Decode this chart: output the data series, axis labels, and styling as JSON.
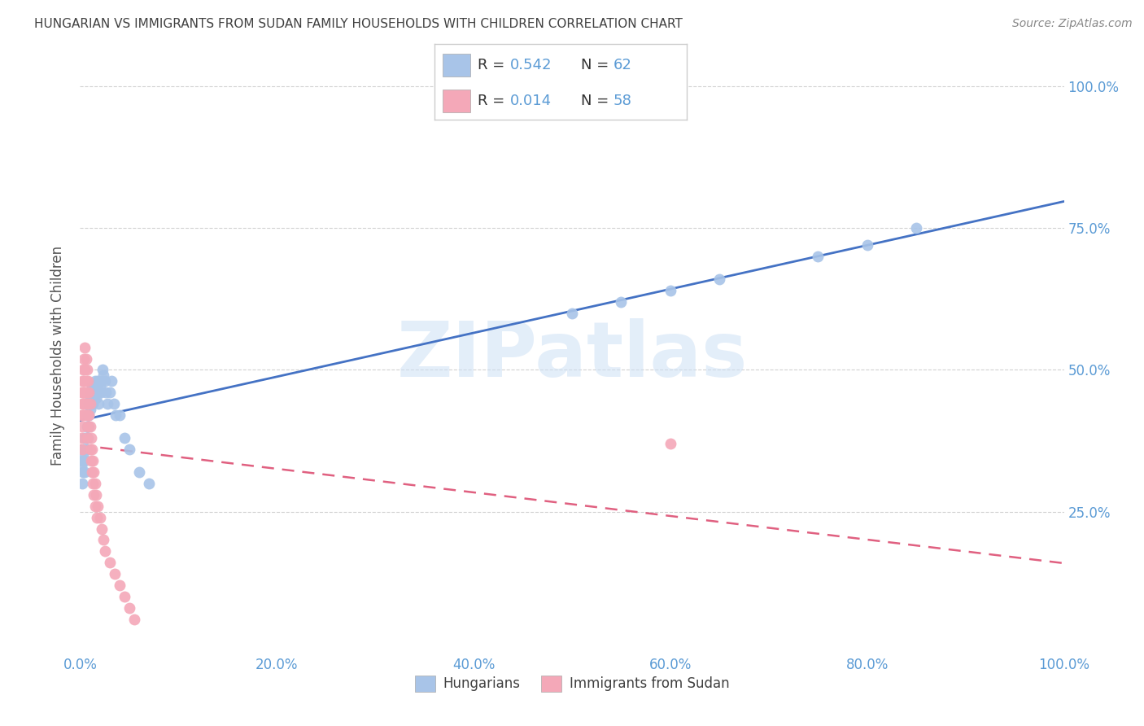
{
  "title": "HUNGARIAN VS IMMIGRANTS FROM SUDAN FAMILY HOUSEHOLDS WITH CHILDREN CORRELATION CHART",
  "source": "Source: ZipAtlas.com",
  "ylabel": "Family Households with Children",
  "blue_r": 0.542,
  "blue_n": 62,
  "pink_r": 0.014,
  "pink_n": 58,
  "blue_color": "#a8c4e8",
  "pink_color": "#f4a8b8",
  "blue_line_color": "#4472c4",
  "pink_line_color": "#e06080",
  "title_color": "#404040",
  "axis_color": "#5b9bd5",
  "watermark": "ZIPatlas",
  "blue_x": [
    0.001,
    0.002,
    0.002,
    0.003,
    0.003,
    0.004,
    0.004,
    0.005,
    0.005,
    0.005,
    0.006,
    0.006,
    0.007,
    0.007,
    0.008,
    0.008,
    0.008,
    0.009,
    0.009,
    0.009,
    0.01,
    0.01,
    0.011,
    0.011,
    0.012,
    0.012,
    0.013,
    0.013,
    0.014,
    0.014,
    0.015,
    0.015,
    0.016,
    0.016,
    0.017,
    0.018,
    0.018,
    0.019,
    0.02,
    0.021,
    0.022,
    0.023,
    0.024,
    0.025,
    0.026,
    0.028,
    0.03,
    0.032,
    0.034,
    0.036,
    0.04,
    0.045,
    0.05,
    0.06,
    0.07,
    0.5,
    0.55,
    0.6,
    0.65,
    0.75,
    0.8,
    0.85
  ],
  "blue_y": [
    0.33,
    0.34,
    0.3,
    0.35,
    0.32,
    0.36,
    0.38,
    0.34,
    0.36,
    0.32,
    0.38,
    0.36,
    0.4,
    0.38,
    0.42,
    0.4,
    0.38,
    0.44,
    0.42,
    0.4,
    0.45,
    0.43,
    0.46,
    0.44,
    0.47,
    0.45,
    0.46,
    0.44,
    0.47,
    0.45,
    0.48,
    0.46,
    0.47,
    0.45,
    0.46,
    0.48,
    0.46,
    0.44,
    0.47,
    0.46,
    0.48,
    0.5,
    0.49,
    0.48,
    0.46,
    0.44,
    0.46,
    0.48,
    0.44,
    0.42,
    0.42,
    0.38,
    0.36,
    0.32,
    0.3,
    0.6,
    0.62,
    0.64,
    0.66,
    0.7,
    0.72,
    0.75
  ],
  "pink_x": [
    0.001,
    0.001,
    0.001,
    0.002,
    0.002,
    0.002,
    0.002,
    0.003,
    0.003,
    0.003,
    0.003,
    0.004,
    0.004,
    0.004,
    0.004,
    0.005,
    0.005,
    0.005,
    0.005,
    0.006,
    0.006,
    0.006,
    0.007,
    0.007,
    0.007,
    0.007,
    0.008,
    0.008,
    0.008,
    0.009,
    0.009,
    0.01,
    0.01,
    0.01,
    0.011,
    0.011,
    0.012,
    0.012,
    0.013,
    0.013,
    0.014,
    0.014,
    0.015,
    0.015,
    0.016,
    0.017,
    0.018,
    0.02,
    0.022,
    0.024,
    0.025,
    0.03,
    0.035,
    0.04,
    0.045,
    0.05,
    0.055,
    0.6
  ],
  "pink_y": [
    0.42,
    0.46,
    0.38,
    0.44,
    0.48,
    0.4,
    0.36,
    0.46,
    0.44,
    0.42,
    0.5,
    0.48,
    0.52,
    0.46,
    0.44,
    0.54,
    0.5,
    0.46,
    0.42,
    0.52,
    0.48,
    0.44,
    0.5,
    0.46,
    0.42,
    0.38,
    0.48,
    0.44,
    0.4,
    0.46,
    0.42,
    0.44,
    0.4,
    0.36,
    0.38,
    0.34,
    0.36,
    0.32,
    0.34,
    0.3,
    0.32,
    0.28,
    0.3,
    0.26,
    0.28,
    0.24,
    0.26,
    0.24,
    0.22,
    0.2,
    0.18,
    0.16,
    0.14,
    0.12,
    0.1,
    0.08,
    0.06,
    0.37
  ],
  "xlim": [
    0,
    1.0
  ],
  "ylim": [
    0,
    1.05
  ],
  "xticks": [
    0.0,
    0.2,
    0.4,
    0.6,
    0.8,
    1.0
  ],
  "yticks": [
    0.25,
    0.5,
    0.75,
    1.0
  ],
  "xtick_labels": [
    "0.0%",
    "20.0%",
    "40.0%",
    "60.0%",
    "80.0%",
    "100.0%"
  ],
  "ytick_labels_right": [
    "25.0%",
    "50.0%",
    "75.0%",
    "100.0%"
  ],
  "grid_color": "#cccccc",
  "background_color": "#ffffff"
}
